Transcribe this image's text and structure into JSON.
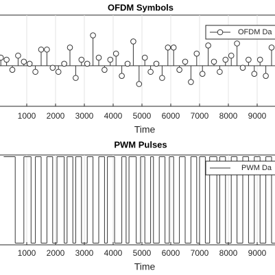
{
  "chart_data": [
    {
      "type": "stem",
      "title": "OFDM Symbols",
      "xlabel": "Time",
      "x": [
        100,
        300,
        500,
        700,
        900,
        1100,
        1300,
        1500,
        1700,
        1900,
        2100,
        2300,
        2500,
        2700,
        2900,
        3100,
        3300,
        3500,
        3700,
        3900,
        4100,
        4300,
        4500,
        4700,
        4900,
        5100,
        5300,
        5500,
        5700,
        5900,
        6100,
        6300,
        6500,
        6700,
        6900,
        7100,
        7300,
        7500,
        7700,
        7900,
        8100,
        8300,
        8500,
        8700,
        8900,
        9100,
        9300,
        9500
      ],
      "series": [
        {
          "name": "OFDM Da",
          "color": "#333333",
          "values": [
            0.4,
            0.3,
            -0.2,
            0.5,
            0.2,
            0.1,
            -0.3,
            0.8,
            0.8,
            -0.1,
            -0.3,
            0.1,
            0.9,
            -0.6,
            0.3,
            0.1,
            1.5,
            0.4,
            -0.2,
            0.3,
            0.6,
            -0.5,
            0.1,
            1.2,
            -0.9,
            0.4,
            -0.3,
            0.1,
            -0.6,
            0.9,
            0.9,
            -0.2,
            0.2,
            -0.8,
            0.6,
            -0.4,
            1.0,
            0.2,
            -0.3,
            0.3,
            0.5,
            1.1,
            -0.1,
            0.3,
            -0.4,
            0.3,
            -0.5,
            0.9
          ]
        }
      ],
      "xlim": [
        0,
        10000
      ],
      "ylim": [
        -2,
        2.5
      ],
      "xticks": [
        1000,
        2000,
        3000,
        4000,
        5000,
        6000,
        7000,
        8000,
        9000
      ],
      "grid": true
    },
    {
      "type": "step",
      "title": "PWM Pulses",
      "xlabel": "Time",
      "x": [
        200,
        600,
        900,
        1150,
        1300,
        1500,
        1700,
        1900,
        2050,
        2300,
        2400,
        2600,
        2700,
        2900,
        3100,
        3300,
        3500,
        3700,
        3800,
        4050,
        4300,
        4450,
        4550,
        4800,
        4950,
        5100,
        5300,
        5400,
        5600,
        5800,
        5950,
        6100,
        6300,
        6500,
        6700,
        6900,
        7000,
        7200,
        7350,
        7600,
        7700,
        7900,
        8100,
        8300,
        8500,
        8700,
        8900,
        9100,
        9300,
        9500
      ],
      "series": [
        {
          "name": "PWM Da",
          "color": "#333333",
          "values": [
            1,
            0,
            1,
            0,
            1,
            0,
            1,
            0,
            1,
            0,
            1,
            0,
            1,
            0,
            1,
            0,
            1,
            0,
            1,
            0,
            1,
            0,
            1,
            0,
            1,
            0,
            1,
            0,
            1,
            0,
            1,
            0,
            1,
            0,
            1,
            0,
            1,
            0,
            1,
            0,
            1,
            0,
            1,
            0,
            1,
            0,
            1,
            0,
            1,
            0
          ]
        }
      ],
      "xlim": [
        0,
        10000
      ],
      "ylim": [
        -0.02,
        1.02
      ],
      "xticks": [
        1000,
        2000,
        3000,
        4000,
        5000,
        6000,
        7000,
        8000,
        9000
      ],
      "grid": true
    }
  ]
}
